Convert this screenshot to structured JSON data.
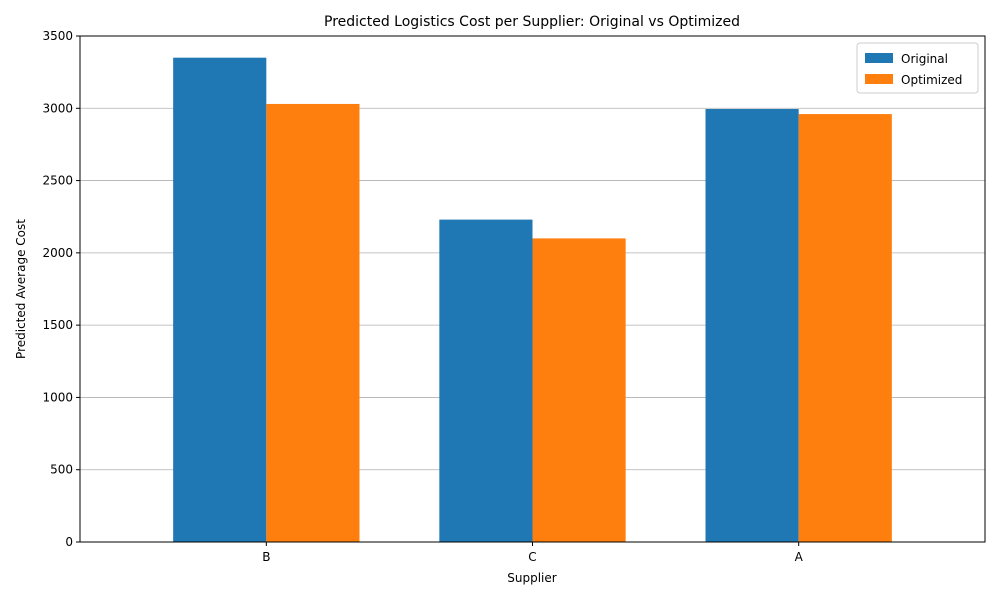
{
  "chart_data": {
    "type": "bar",
    "title": "Predicted Logistics Cost per Supplier: Original vs Optimized",
    "xlabel": "Supplier",
    "ylabel": "Predicted Average Cost",
    "categories": [
      "B",
      "C",
      "A"
    ],
    "series": [
      {
        "name": "Original",
        "color": "#1f77b4",
        "values": [
          3350,
          2230,
          2995
        ]
      },
      {
        "name": "Optimized",
        "color": "#ff7f0e",
        "values": [
          3030,
          2100,
          2960
        ]
      }
    ],
    "ylim": [
      0,
      3500
    ],
    "yticks": [
      0,
      500,
      1000,
      1500,
      2000,
      2500,
      3000,
      3500
    ],
    "grid": "y",
    "legend": "top-right"
  }
}
